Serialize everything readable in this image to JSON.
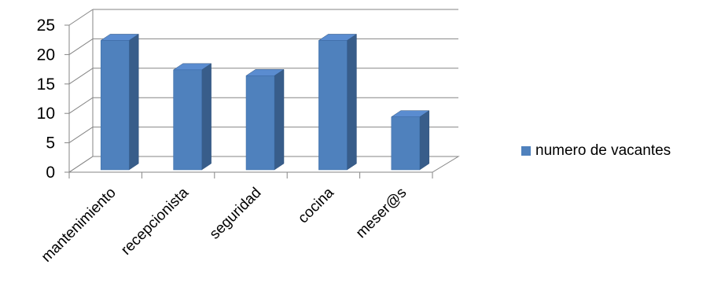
{
  "chart_data": {
    "type": "bar",
    "style": "3d-column",
    "categories": [
      "mantenimiento",
      "recepcionista",
      "seguridad",
      "cocina",
      "meser@s"
    ],
    "series": [
      {
        "name": "numero de vacantes",
        "values": [
          22,
          17,
          16,
          22,
          9
        ]
      }
    ],
    "ylim": [
      0,
      25
    ],
    "yticks": [
      "0",
      "5",
      "10",
      "15",
      "20",
      "25"
    ],
    "grid": true,
    "legend": "right",
    "colors": {
      "front": "#4f81bd",
      "side": "#385d8a",
      "top": "#5a8cd0",
      "grid": "#868686"
    }
  }
}
